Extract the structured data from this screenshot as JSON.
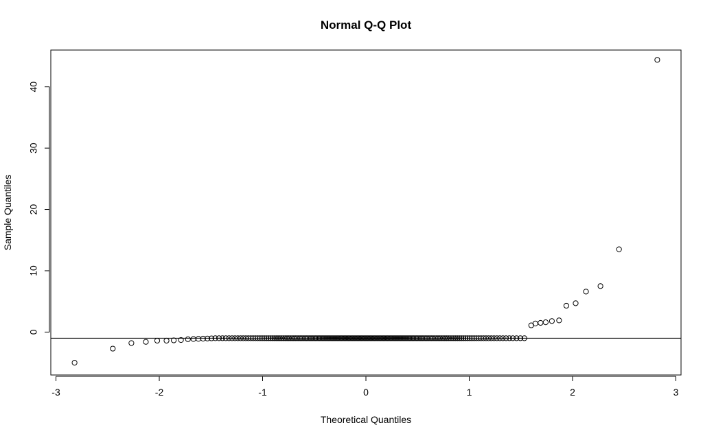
{
  "chart_data": {
    "type": "scatter",
    "title": "Normal Q-Q Plot",
    "xlabel": "Theoretical Quantiles",
    "ylabel": "Sample Quantiles",
    "xlim": [
      -3.05,
      3.05
    ],
    "ylim": [
      -7,
      46
    ],
    "x_ticks": [
      -3,
      -2,
      -1,
      0,
      1,
      2,
      3
    ],
    "y_ticks": [
      0,
      10,
      20,
      30,
      40
    ],
    "grid": false,
    "reference_line": {
      "orientation": "horizontal",
      "y": -1
    },
    "n_points": 200,
    "central_value": -1,
    "points": [
      [
        -2.82,
        -5.0
      ],
      [
        -2.45,
        -2.7
      ],
      [
        -2.27,
        -1.8
      ],
      [
        -2.13,
        -1.6
      ],
      [
        -2.02,
        -1.4
      ],
      [
        -1.93,
        -1.4
      ],
      [
        -1.86,
        -1.35
      ],
      [
        -1.79,
        -1.3
      ],
      [
        1.6,
        1.1
      ],
      [
        1.64,
        1.4
      ],
      [
        1.69,
        1.5
      ],
      [
        1.74,
        1.6
      ],
      [
        1.8,
        1.8
      ],
      [
        1.87,
        1.9
      ],
      [
        1.94,
        4.3
      ],
      [
        2.03,
        4.7
      ],
      [
        2.13,
        6.6
      ],
      [
        2.27,
        7.5
      ],
      [
        2.45,
        13.5
      ],
      [
        2.82,
        44.4
      ]
    ]
  }
}
